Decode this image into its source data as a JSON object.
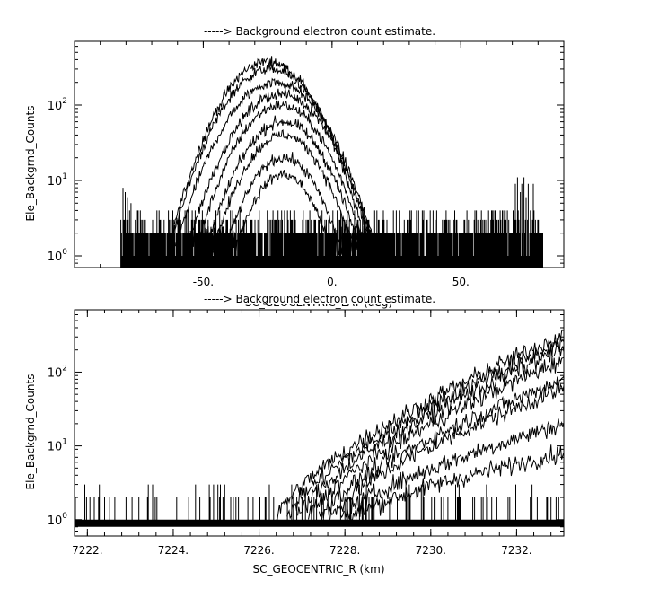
{
  "chart_data": [
    {
      "type": "line",
      "title": "-----> Background electron count estimate.",
      "xlabel": "SC_GEOCENTRIC_LAT (deg)",
      "ylabel": "Ele_Backgrnd_Counts",
      "yscale": "log",
      "xlim": [
        -100,
        90
      ],
      "ylim": [
        0.7,
        700
      ],
      "xticks": [
        -50,
        0,
        50
      ],
      "xtick_labels": [
        "-50.",
        "0.",
        "50."
      ],
      "yticks": [
        1,
        10,
        100
      ],
      "ytick_labels": [
        "10^0",
        "10^1",
        "10^2"
      ],
      "grid": false,
      "legend": "none",
      "noise_floor_counts": [
        1,
        2,
        3,
        4
      ],
      "lat_range": [
        -82,
        82
      ],
      "series": [
        {
          "peak_lat": -25,
          "peak_counts": 380,
          "half_width_deg": 29
        },
        {
          "peak_lat": -24,
          "peak_counts": 300,
          "half_width_deg": 30
        },
        {
          "peak_lat": -22,
          "peak_counts": 200,
          "half_width_deg": 31
        },
        {
          "peak_lat": -20,
          "peak_counts": 140,
          "half_width_deg": 30
        },
        {
          "peak_lat": -20,
          "peak_counts": 100,
          "half_width_deg": 28
        },
        {
          "peak_lat": -19,
          "peak_counts": 60,
          "half_width_deg": 27
        },
        {
          "peak_lat": -19,
          "peak_counts": 40,
          "half_width_deg": 26
        },
        {
          "peak_lat": -19,
          "peak_counts": 20,
          "half_width_deg": 24
        },
        {
          "peak_lat": -19,
          "peak_counts": 12,
          "half_width_deg": 22
        }
      ]
    },
    {
      "type": "line",
      "title": "-----> Background electron count estimate.",
      "xlabel": "SC_GEOCENTRIC_R (km)",
      "ylabel": "Ele_Backgrnd_Counts",
      "yscale": "log",
      "xlim": [
        7221.7,
        7233.1
      ],
      "ylim": [
        0.6,
        700
      ],
      "xticks": [
        7222,
        7224,
        7226,
        7228,
        7230,
        7232
      ],
      "xtick_labels": [
        "7222.",
        "7224.",
        "7226.",
        "7228.",
        "7230.",
        "7232."
      ],
      "yticks": [
        1,
        10,
        100
      ],
      "ytick_labels": [
        "10^0",
        "10^1",
        "10^2"
      ],
      "grid": false,
      "legend": "none",
      "onset_r_km": 7226.4,
      "series": [
        {
          "end_counts": 320
        },
        {
          "end_counts": 260
        },
        {
          "end_counts": 210
        },
        {
          "end_counts": 150
        },
        {
          "end_counts": 80
        },
        {
          "end_counts": 60
        },
        {
          "end_counts": 20
        },
        {
          "end_counts": 8
        }
      ]
    }
  ]
}
